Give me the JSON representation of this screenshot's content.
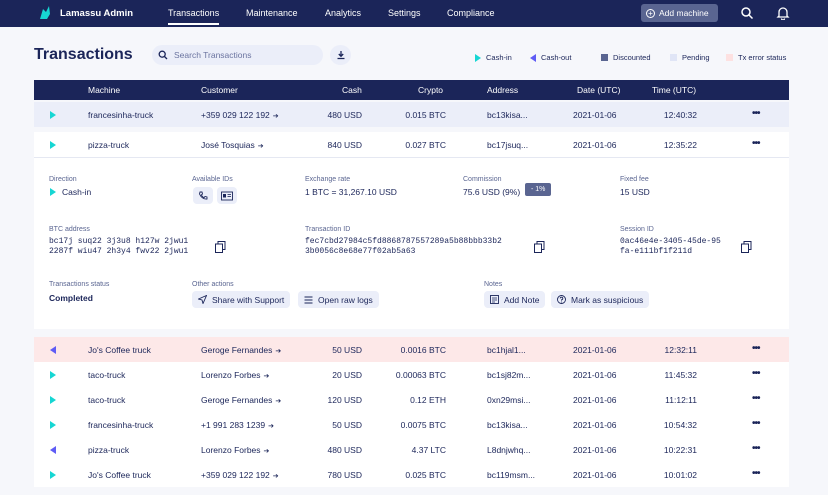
{
  "nav": {
    "brand": "Lamassu Admin",
    "items": [
      "Transactions",
      "Maintenance",
      "Analytics",
      "Settings",
      "Compliance"
    ],
    "add_machine": "Add machine"
  },
  "header": {
    "title": "Transactions",
    "search_placeholder": "Search Transactions",
    "legend": [
      {
        "label": "Cash-in",
        "color": "#16d6d3"
      },
      {
        "label": "Cash-out",
        "color": "#5f5cf5"
      },
      {
        "label": "Discounted",
        "color": "#5a6591"
      },
      {
        "label": "Pending",
        "color": "#e0e5f6"
      },
      {
        "label": "Tx error status",
        "color": "#fde1e1"
      }
    ]
  },
  "table": {
    "columns": [
      "Machine",
      "Customer",
      "Cash",
      "Crypto",
      "Address",
      "Date (UTC)",
      "Time (UTC)"
    ],
    "top_rows": [
      {
        "dir": "in",
        "machine": "francesinha-truck",
        "customer": "+359 029 122 192",
        "cash": "480 USD",
        "crypto": "0.015 BTC",
        "address": "bc13kisa...",
        "date": "2021-01-06",
        "time": "12:40:32",
        "state": "sel"
      },
      {
        "dir": "in",
        "machine": "pizza-truck",
        "customer": "José Tosquias",
        "cash": "840 USD",
        "crypto": "0.027 BTC",
        "address": "bc17jsuq...",
        "date": "2021-01-06",
        "time": "12:35:22",
        "state": "expanded"
      }
    ],
    "bottom_rows": [
      {
        "dir": "out",
        "machine": "Jo's Coffee truck",
        "customer": "Geroge Fernandes",
        "cash": "50 USD",
        "crypto": "0.0016 BTC",
        "address": "bc1hjal1...",
        "date": "2021-01-06",
        "time": "12:32:11",
        "state": "err"
      },
      {
        "dir": "in",
        "machine": "taco-truck",
        "customer": "Lorenzo Forbes",
        "cash": "20 USD",
        "crypto": "0.00063 BTC",
        "address": "bc1sj82m...",
        "date": "2021-01-06",
        "time": "11:45:32",
        "state": ""
      },
      {
        "dir": "in",
        "machine": "taco-truck",
        "customer": "Geroge Fernandes",
        "cash": "120 USD",
        "crypto": "0.12 ETH",
        "address": "0xn29msi...",
        "date": "2021-01-06",
        "time": "11:12:11",
        "state": ""
      },
      {
        "dir": "in",
        "machine": "francesinha-truck",
        "customer": "+1 991 283 1239",
        "cash": "50 USD",
        "crypto": "0.0075 BTC",
        "address": "bc13kisa...",
        "date": "2021-01-06",
        "time": "10:54:32",
        "state": ""
      },
      {
        "dir": "out",
        "machine": "pizza-truck",
        "customer": "Lorenzo Forbes",
        "cash": "480 USD",
        "crypto": "4.37 LTC",
        "address": "L8dnjwhq...",
        "date": "2021-01-06",
        "time": "10:22:31",
        "state": ""
      },
      {
        "dir": "in",
        "machine": "Jo's Coffee truck",
        "customer": "+359 029 122 192",
        "cash": "780 USD",
        "crypto": "0.025 BTC",
        "address": "bc119msm...",
        "date": "2021-01-06",
        "time": "10:01:02",
        "state": ""
      }
    ]
  },
  "details": {
    "direction_label": "Direction",
    "direction_value": "Cash-in",
    "ids_label": "Available IDs",
    "exchange_label": "Exchange rate",
    "exchange_value": "1 BTC = 31,267.10 USD",
    "commission_label": "Commission",
    "commission_value": "75.6 USD (9%)",
    "commission_badge": "- 1%",
    "fee_label": "Fixed fee",
    "fee_value": "15 USD",
    "address_label": "BTC address",
    "address_line1": "bc17j suq22 3j3u8 h127w 2jwu1",
    "address_line2": "2287f wiu47 2h3y4 fwv22 2jwu1",
    "txid_label": "Transaction ID",
    "txid_line1": "fec7cbd27984c5fd8868787557289a5b88bbb33b2",
    "txid_line2": "3b0056c8e68e77f02ab5a63",
    "session_label": "Session ID",
    "session_line1": "0ac46e4e-3405-45de-95",
    "session_line2": "fa-e111bf1f211d",
    "status_label": "Transactions status",
    "status_value": "Completed",
    "other_label": "Other actions",
    "share_label": "Share with Support",
    "logs_label": "Open raw logs",
    "notes_label": "Notes",
    "add_note_label": "Add Note",
    "suspicious_label": "Mark as suspicious"
  }
}
